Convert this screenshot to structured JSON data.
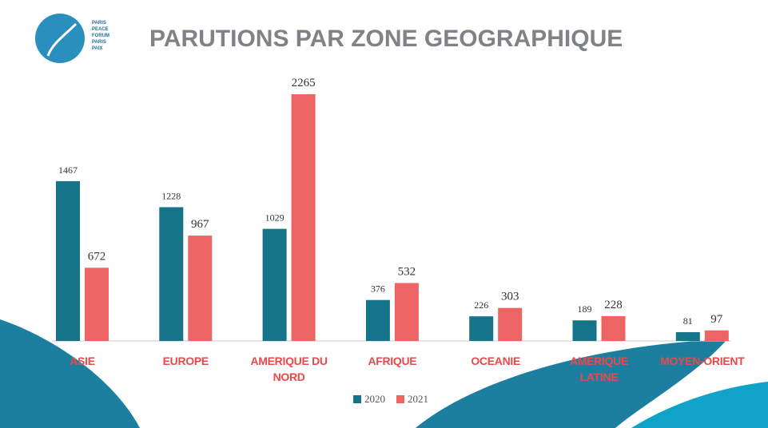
{
  "logo": {
    "lines": [
      "PARIS",
      "PEACE",
      "FORUM",
      "PARIS",
      "PAIX"
    ]
  },
  "chart_data": {
    "type": "bar",
    "title": "PARUTIONS PAR ZONE GEOGRAPHIQUE",
    "categories": [
      "ASIE",
      "EUROPE",
      "AMERIQUE DU NORD",
      "AFRIQUE",
      "OCEANIE",
      "AMERIQUE LATINE",
      "MOYEN-ORIENT"
    ],
    "series": [
      {
        "name": "2020",
        "color": "#16748a",
        "values": [
          1467,
          1228,
          1029,
          376,
          226,
          189,
          81
        ]
      },
      {
        "name": "2021",
        "color": "#ec6464",
        "values": [
          672,
          967,
          2265,
          532,
          303,
          228,
          97
        ]
      }
    ],
    "legend": "bottom"
  }
}
